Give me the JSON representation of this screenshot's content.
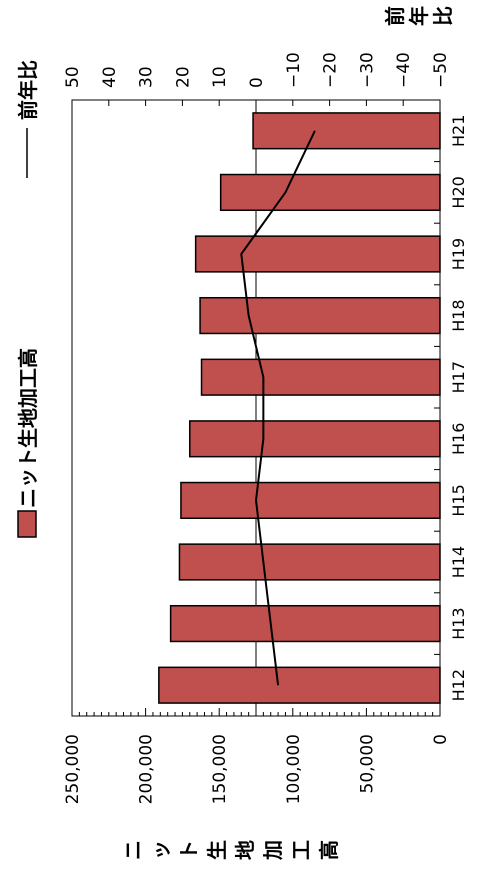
{
  "chart_data": {
    "type": "bar",
    "orientation": "rotated-90",
    "categories": [
      "H12",
      "H13",
      "H14",
      "H15",
      "H16",
      "H17",
      "H18",
      "H19",
      "H20",
      "H21"
    ],
    "series": [
      {
        "name": "ニット生地加工高",
        "kind": "bar",
        "axis": "left",
        "values": [
          191000,
          183000,
          177000,
          176000,
          170000,
          162000,
          163000,
          166000,
          149000,
          127000
        ],
        "color": "#c0504d"
      },
      {
        "name": "前年比",
        "kind": "line",
        "axis": "right",
        "values": [
          -6,
          -4,
          -2,
          0,
          -2,
          -2,
          2,
          4,
          -8,
          -16
        ],
        "color": "#000000"
      }
    ],
    "left_axis": {
      "label": "ニット生地加工高",
      "ylim": [
        0,
        250000
      ],
      "ticks": [
        "0",
        "50,000",
        "100,000",
        "150,000",
        "200,000",
        "250,000"
      ]
    },
    "right_axis": {
      "label": "前年比",
      "ylim": [
        -50,
        50
      ],
      "ticks": [
        "50",
        "40",
        "30",
        "20",
        "10",
        "0",
        "−10",
        "−20",
        "−30",
        "−40",
        "−50"
      ]
    },
    "legend_placement": "right",
    "grid": false
  }
}
